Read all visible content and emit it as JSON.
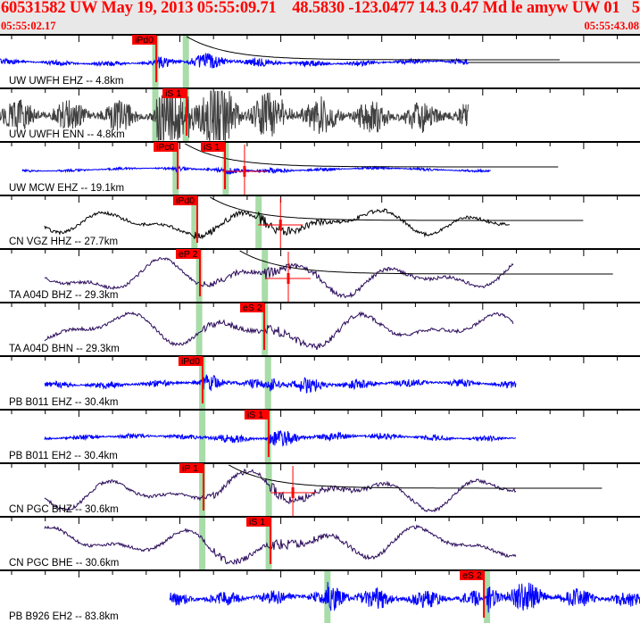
{
  "header": {
    "event_id": "60531582",
    "network": "UW",
    "date": "May 19, 2013",
    "origin_time": "05:55:09.71",
    "latitude": "48.5830",
    "longitude": "-123.0477",
    "depth": "14.3",
    "magnitude": "0.47",
    "mag_type": "Md",
    "event_type": "le",
    "author": "amyw",
    "source": "UW",
    "version": "01",
    "extra": "5",
    "start_time": "05:55:02.17",
    "end_time": "05:55:43.08"
  },
  "colors": {
    "header_text": "#ff0000",
    "pick": "#ff0000",
    "band": "#a8dca8",
    "blue": "#0000ff",
    "gray": "#404040",
    "black": "#000000",
    "purple": "#2a0a5a"
  },
  "traces": [
    {
      "label": "UW UWFH EHZ -- 4.8km",
      "color": "blue",
      "style": "noise",
      "data_start": "05:55:02.17",
      "data_end": "05:55:32.12",
      "amp": 3,
      "picks": [
        {
          "label": "iPd0",
          "time": "05:55:12.16"
        }
      ],
      "bands": [
        "05:55:12.10",
        "05:55:14.05"
      ],
      "coda": "05:55:14.10",
      "flat_end": true
    },
    {
      "label": "UW UWFH ENN -- 4.8km",
      "color": "gray",
      "style": "noise",
      "data_start": "05:55:02.17",
      "data_end": "05:55:32.12",
      "amp": 18,
      "picks": [
        {
          "label": "iS 1",
          "time": "05:55:14.10"
        }
      ],
      "bands": [
        "05:55:12.10",
        "05:55:14.05"
      ]
    },
    {
      "label": "UW MCW EHZ -- 19.1km",
      "color": "blue",
      "style": "noise",
      "data_start": "05:55:03.60",
      "data_end": "05:55:33.55",
      "amp": 1.5,
      "picks": [
        {
          "label": "iPc0",
          "time": "05:55:13.53"
        },
        {
          "label": "iS 1",
          "time": "05:55:16.55"
        }
      ],
      "bands": [
        "05:55:13.40",
        "05:55:16.60"
      ],
      "coda": "05:55:14.00",
      "errbar": "05:55:17.80"
    },
    {
      "label": "CN VGZ HHZ -- 27.7km",
      "color": "black",
      "style": "smooth",
      "data_start": "05:55:05.02",
      "data_end": "05:55:34.80",
      "amp": 14,
      "picks": [
        {
          "label": "iPd0",
          "time": "05:55:14.78"
        }
      ],
      "bands": [
        "05:55:14.60",
        "05:55:18.70"
      ],
      "coda": "05:55:15.60",
      "errbar": "05:55:20.10"
    },
    {
      "label": "TA A04D BHZ -- 29.3km",
      "color": "purple",
      "style": "smooth",
      "data_start": "05:55:05.02",
      "data_end": "05:55:35.00",
      "amp": 18,
      "picks": [
        {
          "label": "eP 2",
          "time": "05:55:14.95"
        }
      ],
      "bands": [
        "05:55:14.90",
        "05:55:19.10"
      ],
      "coda": "05:55:17.50",
      "errbar": "05:55:20.60"
    },
    {
      "label": "TA A04D BHN -- 29.3km",
      "color": "purple",
      "style": "smooth",
      "data_start": "05:55:05.02",
      "data_end": "05:55:35.00",
      "amp": 18,
      "picks": [
        {
          "label": "eS 2",
          "time": "05:55:19.06"
        }
      ],
      "bands": [
        "05:55:14.90",
        "05:55:19.10"
      ]
    },
    {
      "label": "PB B011 EHZ -- 30.4km",
      "color": "blue",
      "style": "noise",
      "data_start": "05:55:05.02",
      "data_end": "05:55:35.15",
      "amp": 4,
      "picks": [
        {
          "label": "iPd0",
          "time": "05:55:15.12"
        }
      ],
      "bands": [
        "05:55:15.10",
        "05:55:19.30"
      ]
    },
    {
      "label": "PB B011 EH2 -- 30.4km",
      "color": "blue",
      "style": "noise",
      "data_start": "05:55:05.02",
      "data_end": "05:55:35.15",
      "amp": 3,
      "picks": [
        {
          "label": "iS 1",
          "time": "05:55:19.34"
        }
      ],
      "bands": [
        "05:55:15.10",
        "05:55:19.30"
      ]
    },
    {
      "label": "CN PGC BHZ -- 30.6km",
      "color": "purple",
      "style": "smooth",
      "data_start": "05:55:05.02",
      "data_end": "05:55:35.15",
      "amp": 18,
      "picks": [
        {
          "label": "iP 1",
          "time": "05:55:15.18"
        }
      ],
      "bands": [
        "05:55:15.10",
        "05:55:19.35"
      ],
      "coda": "05:55:16.80",
      "errbar": "05:55:20.89"
    },
    {
      "label": "CN PGC BHE -- 30.6km",
      "color": "purple",
      "style": "smooth",
      "data_start": "05:55:05.02",
      "data_end": "05:55:35.15",
      "amp": 18,
      "picks": [
        {
          "label": "iS 1",
          "time": "05:55:19.46"
        }
      ],
      "bands": [
        "05:55:15.10",
        "05:55:19.35"
      ]
    },
    {
      "label": "PB B926 EH2 -- 83.8km",
      "color": "blue",
      "style": "noise",
      "data_start": "05:55:13.02",
      "data_end": "05:55:43.08",
      "amp": 8,
      "picks": [
        {
          "label": "eS 2",
          "time": "05:55:33.10"
        }
      ],
      "bands": [
        "05:55:23.10",
        "05:55:33.30"
      ]
    }
  ]
}
